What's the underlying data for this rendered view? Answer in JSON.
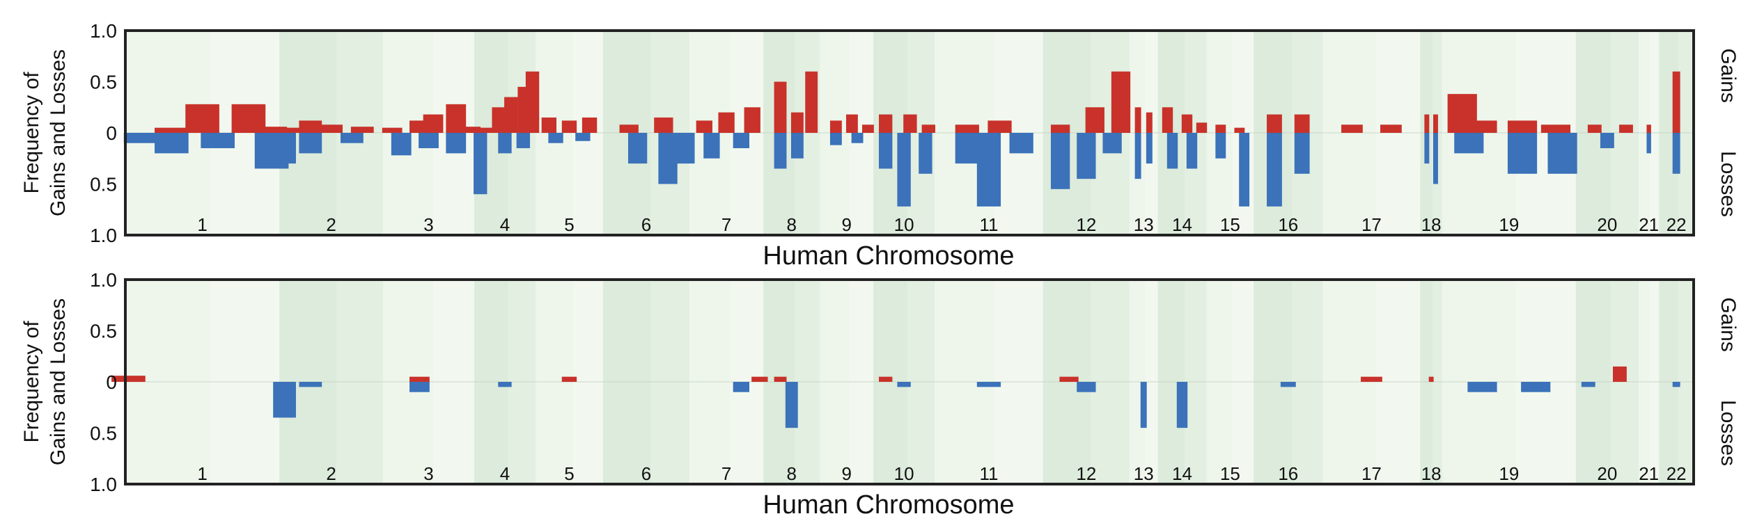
{
  "figure_title": "",
  "colors": {
    "gain": "#c8322a",
    "loss": "#3b72b9",
    "band_light": "#eef6ec",
    "band_dark": "#dcebdb",
    "frame": "#222222"
  },
  "chart_data": [
    {
      "type": "bar",
      "subtype": "diverging-frequency",
      "title": "",
      "xlabel": "Human Chromosome",
      "ylabel": "Frequency of Gains and Losses",
      "right_label_top": "Gains",
      "right_label_bottom": "Losses",
      "ylim": [
        -1.0,
        1.0
      ],
      "yticks": [
        "1.0",
        "0.5",
        "0",
        "0.5",
        "1.0"
      ],
      "chromosomes": [
        "1",
        "2",
        "3",
        "4",
        "5",
        "6",
        "7",
        "8",
        "9",
        "10",
        "11",
        "12",
        "13",
        "14",
        "15",
        "16",
        "17",
        "18",
        "19",
        "20",
        "21",
        "22"
      ],
      "chromosome_widths": [
        9.8,
        6.6,
        5.8,
        3.9,
        4.3,
        5.5,
        4.7,
        3.6,
        3.4,
        3.9,
        6.9,
        5.5,
        1.8,
        3.1,
        3.0,
        4.4,
        6.2,
        1.4,
        8.5,
        4.0,
        1.3,
        2.2
      ],
      "series": [
        {
          "name": "Gains",
          "segments": [
            [
              1,
              0.3,
              0.05
            ],
            [
              1,
              0.5,
              0.28
            ],
            [
              1,
              0.8,
              0.28
            ],
            [
              1,
              0.94,
              0.06
            ],
            [
              2,
              0.1,
              0.05
            ],
            [
              2,
              0.3,
              0.12
            ],
            [
              2,
              0.5,
              0.08
            ],
            [
              2,
              0.8,
              0.06
            ],
            [
              3,
              0.1,
              0.05
            ],
            [
              3,
              0.4,
              0.12
            ],
            [
              3,
              0.55,
              0.18
            ],
            [
              3,
              0.8,
              0.28
            ],
            [
              3,
              0.96,
              0.06
            ],
            [
              4,
              0.2,
              0.05
            ],
            [
              4,
              0.4,
              0.25
            ],
            [
              4,
              0.6,
              0.35
            ],
            [
              4,
              0.82,
              0.45
            ],
            [
              4,
              0.95,
              0.6
            ],
            [
              5,
              0.2,
              0.15
            ],
            [
              5,
              0.5,
              0.12
            ],
            [
              5,
              0.8,
              0.15
            ],
            [
              6,
              0.3,
              0.08
            ],
            [
              6,
              0.7,
              0.15
            ],
            [
              7,
              0.2,
              0.12
            ],
            [
              7,
              0.5,
              0.2
            ],
            [
              7,
              0.85,
              0.25
            ],
            [
              8,
              0.3,
              0.5
            ],
            [
              8,
              0.6,
              0.2
            ],
            [
              8,
              0.85,
              0.6
            ],
            [
              9,
              0.3,
              0.12
            ],
            [
              9,
              0.6,
              0.18
            ],
            [
              9,
              0.9,
              0.08
            ],
            [
              10,
              0.2,
              0.18
            ],
            [
              10,
              0.6,
              0.18
            ],
            [
              10,
              0.9,
              0.08
            ],
            [
              11,
              0.3,
              0.08
            ],
            [
              11,
              0.6,
              0.12
            ],
            [
              12,
              0.2,
              0.08
            ],
            [
              12,
              0.6,
              0.25
            ],
            [
              12,
              0.9,
              0.6
            ],
            [
              13,
              0.3,
              0.25
            ],
            [
              13,
              0.7,
              0.2
            ],
            [
              14,
              0.2,
              0.25
            ],
            [
              14,
              0.6,
              0.18
            ],
            [
              14,
              0.9,
              0.1
            ],
            [
              15,
              0.3,
              0.08
            ],
            [
              15,
              0.7,
              0.05
            ],
            [
              16,
              0.3,
              0.18
            ],
            [
              16,
              0.7,
              0.18
            ],
            [
              17,
              0.3,
              0.08
            ],
            [
              17,
              0.7,
              0.08
            ],
            [
              18,
              0.3,
              0.18
            ],
            [
              18,
              0.7,
              0.18
            ],
            [
              19,
              0.15,
              0.38
            ],
            [
              19,
              0.3,
              0.12
            ],
            [
              19,
              0.6,
              0.12
            ],
            [
              19,
              0.85,
              0.08
            ],
            [
              20,
              0.3,
              0.08
            ],
            [
              20,
              0.8,
              0.08
            ],
            [
              21,
              0.5,
              0.08
            ],
            [
              22,
              0.5,
              0.6
            ]
          ]
        },
        {
          "name": "Losses",
          "segments": [
            [
              1,
              0.1,
              0.1
            ],
            [
              1,
              0.3,
              0.2
            ],
            [
              1,
              0.6,
              0.15
            ],
            [
              1,
              0.95,
              0.35
            ],
            [
              2,
              0.05,
              0.3
            ],
            [
              2,
              0.3,
              0.2
            ],
            [
              2,
              0.7,
              0.1
            ],
            [
              3,
              0.2,
              0.22
            ],
            [
              3,
              0.5,
              0.15
            ],
            [
              3,
              0.8,
              0.2
            ],
            [
              4,
              0.1,
              0.6
            ],
            [
              4,
              0.5,
              0.2
            ],
            [
              4,
              0.8,
              0.15
            ],
            [
              5,
              0.3,
              0.1
            ],
            [
              5,
              0.7,
              0.08
            ],
            [
              6,
              0.4,
              0.3
            ],
            [
              6,
              0.75,
              0.5
            ],
            [
              6,
              0.95,
              0.3
            ],
            [
              7,
              0.3,
              0.25
            ],
            [
              7,
              0.7,
              0.15
            ],
            [
              8,
              0.3,
              0.35
            ],
            [
              8,
              0.6,
              0.25
            ],
            [
              9,
              0.3,
              0.12
            ],
            [
              9,
              0.7,
              0.1
            ],
            [
              10,
              0.2,
              0.35
            ],
            [
              10,
              0.5,
              0.72
            ],
            [
              10,
              0.85,
              0.4
            ],
            [
              11,
              0.3,
              0.3
            ],
            [
              11,
              0.5,
              0.72
            ],
            [
              11,
              0.8,
              0.2
            ],
            [
              12,
              0.2,
              0.55
            ],
            [
              12,
              0.5,
              0.45
            ],
            [
              12,
              0.8,
              0.2
            ],
            [
              13,
              0.3,
              0.45
            ],
            [
              13,
              0.7,
              0.3
            ],
            [
              14,
              0.3,
              0.35
            ],
            [
              14,
              0.7,
              0.35
            ],
            [
              15,
              0.3,
              0.25
            ],
            [
              15,
              0.8,
              0.72
            ],
            [
              16,
              0.3,
              0.72
            ],
            [
              16,
              0.7,
              0.4
            ],
            [
              18,
              0.3,
              0.3
            ],
            [
              18,
              0.7,
              0.5
            ],
            [
              19,
              0.2,
              0.2
            ],
            [
              19,
              0.6,
              0.4
            ],
            [
              19,
              0.9,
              0.4
            ],
            [
              20,
              0.5,
              0.15
            ],
            [
              21,
              0.5,
              0.2
            ],
            [
              22,
              0.5,
              0.4
            ]
          ]
        }
      ]
    },
    {
      "type": "bar",
      "subtype": "diverging-frequency",
      "title": "",
      "xlabel": "Human Chromosome",
      "ylabel": "Frequency of Gains and Losses",
      "right_label_top": "Gains",
      "right_label_bottom": "Losses",
      "ylim": [
        -1.0,
        1.0
      ],
      "yticks": [
        "1.0",
        "0.5",
        "0",
        "0.5",
        "1.0"
      ],
      "chromosomes": [
        "1",
        "2",
        "3",
        "4",
        "5",
        "6",
        "7",
        "8",
        "9",
        "10",
        "11",
        "12",
        "13",
        "14",
        "15",
        "16",
        "17",
        "18",
        "19",
        "20",
        "21",
        "22"
      ],
      "chromosome_widths": [
        9.8,
        6.6,
        5.8,
        3.9,
        4.3,
        5.5,
        4.7,
        3.6,
        3.4,
        3.9,
        6.9,
        5.5,
        1.8,
        3.1,
        3.0,
        4.4,
        6.2,
        1.4,
        8.5,
        4.0,
        1.3,
        2.2
      ],
      "series": [
        {
          "name": "Gains",
          "segments": [
            [
              1,
              0.02,
              0.06
            ],
            [
              3,
              0.4,
              0.05
            ],
            [
              5,
              0.5,
              0.05
            ],
            [
              7,
              0.95,
              0.05
            ],
            [
              8,
              0.3,
              0.05
            ],
            [
              10,
              0.2,
              0.05
            ],
            [
              12,
              0.3,
              0.05
            ],
            [
              17,
              0.5,
              0.05
            ],
            [
              18,
              0.5,
              0.05
            ],
            [
              20,
              0.7,
              0.15
            ]
          ]
        },
        {
          "name": "Losses",
          "segments": [
            [
              2,
              0.05,
              0.35
            ],
            [
              2,
              0.3,
              0.05
            ],
            [
              3,
              0.4,
              0.1
            ],
            [
              4,
              0.5,
              0.05
            ],
            [
              7,
              0.7,
              0.1
            ],
            [
              8,
              0.5,
              0.45
            ],
            [
              10,
              0.5,
              0.05
            ],
            [
              11,
              0.5,
              0.05
            ],
            [
              12,
              0.5,
              0.1
            ],
            [
              13,
              0.5,
              0.45
            ],
            [
              14,
              0.5,
              0.45
            ],
            [
              16,
              0.5,
              0.05
            ],
            [
              19,
              0.3,
              0.1
            ],
            [
              19,
              0.7,
              0.1
            ],
            [
              20,
              0.2,
              0.05
            ],
            [
              22,
              0.5,
              0.05
            ]
          ]
        }
      ]
    }
  ]
}
